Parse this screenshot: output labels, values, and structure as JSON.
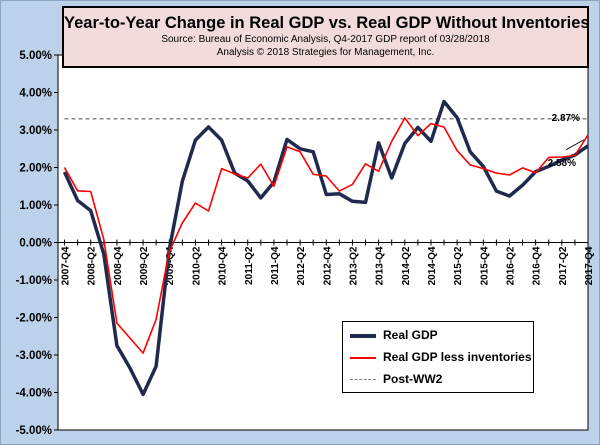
{
  "chart_data": {
    "type": "line",
    "title": "Year-to-Year Change in Real GDP vs. Real GDP Without Inventories",
    "subtitle": "Source: Bureau of Economic Analysis, Q4-2017 GDP report of 03/28/2018",
    "subtitle2": "Analysis © 2018 Strategies for Management, Inc.",
    "xlabel": "",
    "ylabel": "",
    "ylim": [
      -5,
      5
    ],
    "yticks": [
      5,
      4,
      3,
      2,
      1,
      0,
      -1,
      -2,
      -3,
      -4,
      -5
    ],
    "ytick_labels": [
      "5.00%",
      "4.00%",
      "3.00%",
      "2.00%",
      "1.00%",
      "0.00%",
      "-1.00%",
      "-2.00%",
      "-3.00%",
      "-4.00%",
      "-5.00%"
    ],
    "x": [
      "2007-Q4",
      "2008-Q1",
      "2008-Q2",
      "2008-Q3",
      "2008-Q4",
      "2009-Q1",
      "2009-Q2",
      "2009-Q3",
      "2009-Q4",
      "2010-Q1",
      "2010-Q2",
      "2010-Q3",
      "2010-Q4",
      "2011-Q1",
      "2011-Q2",
      "2011-Q3",
      "2011-Q4",
      "2012-Q1",
      "2012-Q2",
      "2012-Q3",
      "2012-Q4",
      "2013-Q1",
      "2013-Q2",
      "2013-Q3",
      "2013-Q4",
      "2014-Q1",
      "2014-Q2",
      "2014-Q3",
      "2014-Q4",
      "2015-Q1",
      "2015-Q2",
      "2015-Q3",
      "2015-Q4",
      "2016-Q1",
      "2016-Q2",
      "2016-Q3",
      "2016-Q4",
      "2017-Q1",
      "2017-Q2",
      "2017-Q3",
      "2017-Q4"
    ],
    "x_tick_labels": [
      "2007-Q4",
      "2008-Q2",
      "2008-Q4",
      "2009-Q2",
      "2009-Q4",
      "2010-Q2",
      "2010-Q4",
      "2011-Q2",
      "2011-Q4",
      "2012-Q2",
      "2012-Q4",
      "2013-Q2",
      "2013-Q4",
      "2014-Q2",
      "2014-Q4",
      "2015-Q2",
      "2015-Q4",
      "2016-Q2",
      "2016-Q4",
      "2017-Q2",
      "2017-Q4"
    ],
    "series": [
      {
        "name": "Real GDP",
        "color": "#1f2a4e",
        "values": [
          1.88,
          1.12,
          0.85,
          -0.31,
          -2.75,
          -3.35,
          -4.05,
          -3.3,
          -0.2,
          1.63,
          2.73,
          3.08,
          2.73,
          1.85,
          1.64,
          1.19,
          1.61,
          2.75,
          2.5,
          2.42,
          1.28,
          1.3,
          1.1,
          1.07,
          2.66,
          1.72,
          2.64,
          3.07,
          2.7,
          3.76,
          3.33,
          2.42,
          2.03,
          1.37,
          1.24,
          1.53,
          1.89,
          2.03,
          2.2,
          2.33,
          2.58
        ]
      },
      {
        "name": "Real GDP less inventories",
        "color": "#ff0000",
        "values": [
          2.0,
          1.38,
          1.36,
          0.08,
          -2.15,
          -2.55,
          -2.95,
          -2.05,
          -0.25,
          0.52,
          1.05,
          0.84,
          1.97,
          1.83,
          1.72,
          2.09,
          1.5,
          2.55,
          2.42,
          1.82,
          1.77,
          1.37,
          1.55,
          2.1,
          1.9,
          2.7,
          3.32,
          2.85,
          3.17,
          3.08,
          2.45,
          2.07,
          1.97,
          1.85,
          1.8,
          1.99,
          1.86,
          2.27,
          2.28,
          2.32,
          2.87
        ]
      },
      {
        "name": "Post-WW2",
        "color": "#808080",
        "values": [
          3.3,
          3.3,
          3.3,
          3.3,
          3.3,
          3.3,
          3.3,
          3.3,
          3.3,
          3.3,
          3.3,
          3.3,
          3.3,
          3.3,
          3.3,
          3.3,
          3.3,
          3.3,
          3.3,
          3.3,
          3.3,
          3.3,
          3.3,
          3.3,
          3.3,
          3.3,
          3.3,
          3.3,
          3.3,
          3.3,
          3.3,
          3.3,
          3.3,
          3.3,
          3.3,
          3.3,
          3.3,
          3.3,
          3.3,
          3.3,
          3.3
        ]
      }
    ],
    "annotations": [
      {
        "text": "2.87%",
        "series": "Real GDP less inventories",
        "x": "2017-Q4",
        "y": 2.87
      },
      {
        "text": "2.58%",
        "series": "Real GDP",
        "x": "2017-Q4",
        "y": 2.58
      }
    ],
    "legend": "bottom-right",
    "grid": false
  }
}
